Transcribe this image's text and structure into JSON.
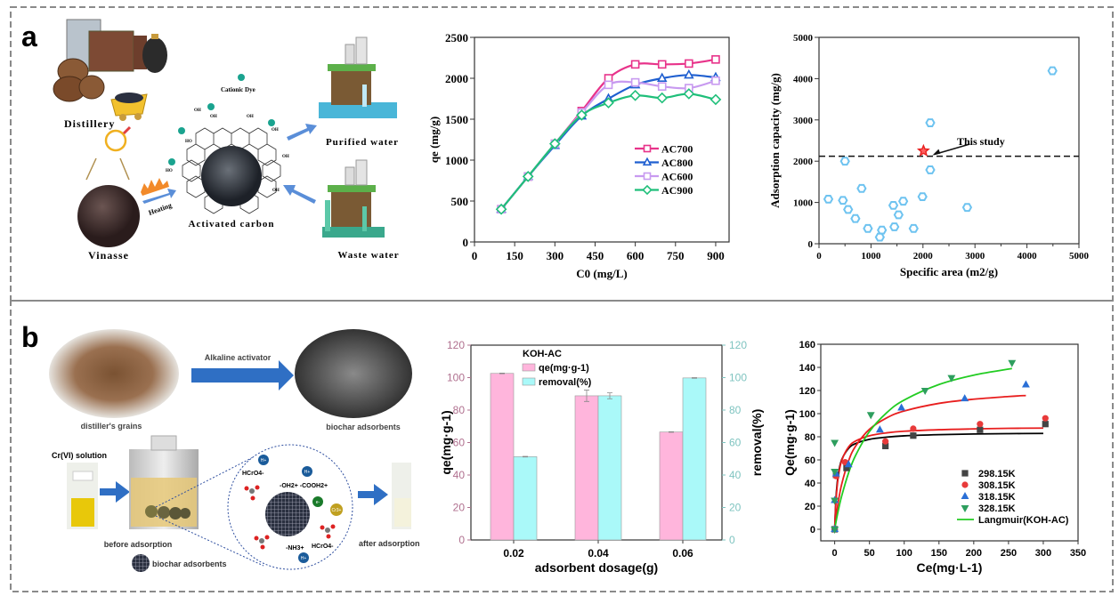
{
  "panels": {
    "a": {
      "letter": "a",
      "diagram": {
        "distillery": "Distillery",
        "vinasse": "Vinasse",
        "heating": "Heating",
        "cationic_dye": "Cationic Dye",
        "activated_carbon": "Activated carbon",
        "purified_water": "Purified water",
        "waste_water": "Waste water",
        "functional_groups": [
          "OH",
          "OH",
          "OH",
          "HO",
          "OH",
          "OH",
          "HO",
          "OH"
        ]
      }
    },
    "b": {
      "letter": "b",
      "diagram": {
        "distillers_grains": "distiller's grains",
        "alkaline_activator": "Alkaline activator",
        "biochar_adsorbents_top": "biochar adsorbents",
        "crvi_solution": "Cr(VI) solution",
        "before_adsorption": "before adsorption",
        "biochar_adsorbents_legend": "biochar adsorbents",
        "after_adsorption": "after adsorption",
        "hcro4_1": "HCrO4-",
        "hcro4_2": "HCrO4-",
        "groups": "-OH2+ -COOH2+",
        "nh3": "-NH3+",
        "h_plus": "H+",
        "e_minus": "e-",
        "cr3": "Cr3+"
      }
    }
  },
  "colors": {
    "border": "#8a8a8a",
    "arrow_blue": "#2f6fc4",
    "dye_teal": "#1aa38f"
  },
  "chart_data": [
    {
      "id": "qe-vs-c0",
      "type": "line",
      "xlabel": "C0 (mg/L)",
      "ylabel": "qe (mg/g)",
      "xlim": [
        0,
        950
      ],
      "ylim": [
        0,
        2500
      ],
      "xticks": [
        0,
        150,
        300,
        450,
        600,
        750,
        900
      ],
      "yticks": [
        0,
        500,
        1000,
        1500,
        2000,
        2500
      ],
      "grid": false,
      "legend": "center-right",
      "x": [
        100,
        200,
        300,
        400,
        500,
        600,
        700,
        800,
        900
      ],
      "series": [
        {
          "name": "AC700",
          "color": "#e8338a",
          "marker": "square",
          "values": [
            400,
            800,
            1200,
            1600,
            2000,
            2170,
            2170,
            2180,
            2230
          ]
        },
        {
          "name": "AC800",
          "color": "#1f5fd0",
          "marker": "triangle",
          "values": [
            400,
            800,
            1180,
            1540,
            1750,
            1920,
            2000,
            2040,
            2010
          ]
        },
        {
          "name": "AC600",
          "color": "#c89af0",
          "marker": "square",
          "values": [
            400,
            800,
            1200,
            1580,
            1920,
            1950,
            1900,
            1880,
            1970
          ]
        },
        {
          "name": "AC900",
          "color": "#1fbf7a",
          "marker": "diamond",
          "values": [
            400,
            800,
            1200,
            1550,
            1700,
            1790,
            1760,
            1810,
            1740
          ]
        }
      ]
    },
    {
      "id": "capacity-vs-area",
      "type": "scatter",
      "xlabel": "Specific area (m2/g)",
      "ylabel": "Adsorption capacity (mg/g)",
      "xlim": [
        0,
        5000
      ],
      "ylim": [
        0,
        5000
      ],
      "xticks": [
        0,
        1000,
        2000,
        3000,
        4000,
        5000
      ],
      "yticks": [
        0,
        1000,
        2000,
        3000,
        4000,
        5000
      ],
      "grid": false,
      "marker_color": "#6ec3f0",
      "points": [
        [
          180,
          1080
        ],
        [
          460,
          1050
        ],
        [
          500,
          2000
        ],
        [
          560,
          830
        ],
        [
          700,
          610
        ],
        [
          820,
          1340
        ],
        [
          940,
          370
        ],
        [
          1170,
          160
        ],
        [
          1210,
          330
        ],
        [
          1430,
          930
        ],
        [
          1450,
          410
        ],
        [
          1530,
          700
        ],
        [
          1620,
          1030
        ],
        [
          1820,
          370
        ],
        [
          1990,
          1140
        ],
        [
          2140,
          2930
        ],
        [
          2140,
          1790
        ],
        [
          2850,
          880
        ],
        [
          4490,
          4190
        ]
      ],
      "highlight": {
        "label": "This study",
        "x": 2010,
        "y": 2250,
        "color": "#e8201f",
        "marker": "star"
      },
      "reference_line": {
        "y": 2120,
        "style": "dashed"
      }
    },
    {
      "id": "dosage-bars",
      "type": "bar",
      "title": "KOH-AC",
      "xlabel": "adsorbent dosage(g)",
      "ylabel": "qe(mg·g-1)",
      "ylabel_right": "removal(%)",
      "categories": [
        "0.02",
        "0.04",
        "0.06"
      ],
      "ylim": [
        0,
        120
      ],
      "ylim_right": [
        0,
        120
      ],
      "yticks": [
        0,
        20,
        40,
        60,
        80,
        100,
        120
      ],
      "legend": "top-left",
      "left_axis_color": "#b0708f",
      "right_axis_color": "#7fc4c0",
      "series": [
        {
          "name": "qe(mg·g-1)",
          "color": "#ffb5dc",
          "values": [
            102.6,
            88.8,
            66.5
          ],
          "errors": [
            0.2,
            3.5,
            0.2
          ]
        },
        {
          "name": "removal(%)",
          "color": "#aaf9f9",
          "values": [
            51.3,
            88.8,
            99.8
          ],
          "errors": [
            0.2,
            1.8,
            0.2
          ]
        }
      ]
    },
    {
      "id": "langmuir-isotherm",
      "type": "scatter",
      "xlabel": "Ce(mg·L-1)",
      "ylabel": "Qe(mg·g-1)",
      "xlim": [
        -20,
        350
      ],
      "ylim": [
        -10,
        160
      ],
      "xticks": [
        0,
        50,
        100,
        150,
        200,
        250,
        300,
        350
      ],
      "yticks": [
        0,
        20,
        40,
        60,
        80,
        100,
        120,
        140,
        160
      ],
      "grid": false,
      "legend": "bottom-right",
      "series": [
        {
          "name": "298.15K",
          "color": "#444444",
          "marker": "square",
          "points": [
            [
              0,
              0
            ],
            [
              2,
              47
            ],
            [
              17,
              53
            ],
            [
              73,
              72
            ],
            [
              113,
              81
            ],
            [
              209,
              86
            ],
            [
              303,
              91
            ]
          ]
        },
        {
          "name": "308.15K",
          "color": "#e83a3a",
          "marker": "circle",
          "points": [
            [
              0,
              0
            ],
            [
              2,
              46
            ],
            [
              15,
              58
            ],
            [
              73,
              76
            ],
            [
              113,
              87
            ],
            [
              209,
              91
            ],
            [
              303,
              96
            ]
          ]
        },
        {
          "name": "318.15K",
          "color": "#2a6fd6",
          "marker": "triangle",
          "points": [
            [
              0,
              0
            ],
            [
              0,
              25
            ],
            [
              2,
              48
            ],
            [
              20,
              56
            ],
            [
              65,
              86
            ],
            [
              96,
              105
            ],
            [
              187,
              113
            ],
            [
              275,
              125
            ]
          ]
        },
        {
          "name": "328.15K",
          "color": "#2e9e5e",
          "marker": "triangle-down",
          "points": [
            [
              0,
              0
            ],
            [
              0,
              25
            ],
            [
              0,
              50
            ],
            [
              0,
              75
            ],
            [
              52,
              99
            ],
            [
              130,
              120
            ],
            [
              168,
              131
            ],
            [
              255,
              144
            ]
          ]
        }
      ],
      "fit_legend": {
        "name": "Langmuir(KOH-AC)",
        "color": "#22cc22"
      },
      "fit_curves": [
        {
          "color": "#000000",
          "points": [
            [
              0,
              0
            ],
            [
              2,
              28
            ],
            [
              5,
              46.7
            ],
            [
              10,
              60
            ],
            [
              20,
              70
            ],
            [
              30,
              74.1
            ],
            [
              50,
              77.8
            ],
            [
              75,
              79.7
            ],
            [
              100,
              80.8
            ],
            [
              150,
              81.8
            ],
            [
              200,
              82.4
            ],
            [
              250,
              82.7
            ],
            [
              300,
              82.9
            ]
          ]
        },
        {
          "color": "#e81e1e",
          "points": [
            [
              0,
              0
            ],
            [
              2,
              25.4
            ],
            [
              5,
              44.5
            ],
            [
              10,
              59.3
            ],
            [
              20,
              71.2
            ],
            [
              30,
              76.3
            ],
            [
              50,
              80.9
            ],
            [
              75,
              83.4
            ],
            [
              100,
              84.8
            ],
            [
              150,
              86.1
            ],
            [
              200,
              86.8
            ],
            [
              250,
              87.3
            ],
            [
              300,
              87.5
            ]
          ]
        },
        {
          "color": "#e81e1e",
          "points": [
            [
              0,
              0
            ],
            [
              2,
              10.3
            ],
            [
              5,
              23
            ],
            [
              10,
              38.8
            ],
            [
              20,
              59.2
            ],
            [
              30,
              71.8
            ],
            [
              50,
              86.5
            ],
            [
              75,
              96.4
            ],
            [
              100,
              102.3
            ],
            [
              150,
              108.9
            ],
            [
              200,
              112.5
            ],
            [
              250,
              114.8
            ],
            [
              275,
              115.7
            ]
          ]
        },
        {
          "color": "#22cc22",
          "points": [
            [
              0,
              0
            ],
            [
              2,
              6.7
            ],
            [
              5,
              15.7
            ],
            [
              10,
              28.6
            ],
            [
              20,
              48.8
            ],
            [
              30,
              63.8
            ],
            [
              50,
              84.5
            ],
            [
              75,
              100.9
            ],
            [
              100,
              111.8
            ],
            [
              150,
              125.2
            ],
            [
              200,
              133.3
            ],
            [
              255,
              139
            ]
          ]
        }
      ]
    }
  ]
}
